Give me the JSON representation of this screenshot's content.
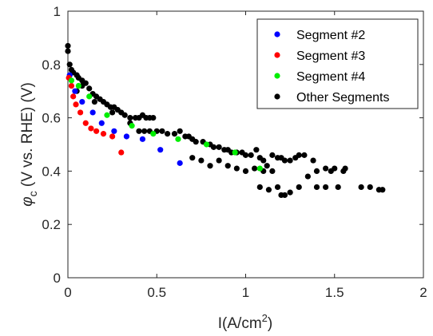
{
  "chart_data": {
    "type": "scatter",
    "xlabel": {
      "base": "I(A/cm",
      "sup": "2",
      "tail": ")"
    },
    "ylabel": {
      "phi": "φ",
      "sub": "c",
      "rest": " (V vs. RHE) (V)"
    },
    "xlim": [
      0,
      2
    ],
    "ylim": [
      0,
      1
    ],
    "xticks": [
      "0",
      "0.5",
      "1",
      "1.5",
      "2"
    ],
    "yticks": [
      "0",
      "0.2",
      "0.4",
      "0.6",
      "0.8",
      "1"
    ],
    "legend_position": "top-right",
    "grid": false,
    "series": [
      {
        "name": "Segment #2",
        "color": "#0000ff",
        "x": [
          0.01,
          0.04,
          0.08,
          0.14,
          0.19,
          0.26,
          0.33,
          0.42,
          0.52,
          0.63
        ],
        "y": [
          0.76,
          0.7,
          0.66,
          0.62,
          0.58,
          0.55,
          0.53,
          0.52,
          0.48,
          0.43
        ]
      },
      {
        "name": "Segment #3",
        "color": "#ff0000",
        "x": [
          0.005,
          0.02,
          0.03,
          0.045,
          0.07,
          0.1,
          0.13,
          0.16,
          0.2,
          0.25,
          0.3
        ],
        "y": [
          0.75,
          0.72,
          0.68,
          0.65,
          0.62,
          0.58,
          0.56,
          0.55,
          0.54,
          0.53,
          0.47
        ]
      },
      {
        "name": "Segment #4",
        "color": "#00ee00",
        "x": [
          0.02,
          0.06,
          0.12,
          0.22,
          0.36,
          0.48,
          0.62,
          0.78,
          0.94,
          1.08
        ],
        "y": [
          0.74,
          0.72,
          0.68,
          0.61,
          0.57,
          0.54,
          0.52,
          0.5,
          0.47,
          0.41
        ]
      },
      {
        "name": "Other Segments",
        "color": "#000000",
        "x": [
          0.0,
          0.0,
          0.01,
          0.02,
          0.03,
          0.05,
          0.06,
          0.08,
          0.1,
          0.12,
          0.14,
          0.16,
          0.18,
          0.2,
          0.22,
          0.24,
          0.26,
          0.28,
          0.3,
          0.32,
          0.35,
          0.38,
          0.4,
          0.42,
          0.44,
          0.46,
          0.48,
          0.4,
          0.43,
          0.46,
          0.5,
          0.53,
          0.56,
          0.6,
          0.63,
          0.66,
          0.68,
          0.7,
          0.72,
          0.76,
          0.8,
          0.82,
          0.85,
          0.88,
          0.9,
          0.92,
          0.95,
          0.98,
          1.0,
          1.03,
          1.06,
          1.08,
          1.1,
          1.12,
          1.15,
          1.18,
          1.2,
          1.22,
          1.25,
          1.28,
          1.3,
          1.33,
          1.35,
          1.38,
          1.4,
          1.45,
          1.48,
          1.5,
          1.55,
          1.56,
          1.65,
          1.7,
          1.75,
          1.77,
          0.9,
          0.95,
          1.0,
          1.05,
          1.1,
          1.15,
          1.2,
          1.25,
          1.3,
          0.85,
          0.8,
          0.75,
          0.7,
          1.18,
          1.22,
          1.4,
          1.45,
          1.52,
          1.08,
          1.13,
          0.15,
          0.25,
          0.35,
          0.05,
          0.08
        ],
        "y": [
          0.87,
          0.85,
          0.8,
          0.78,
          0.77,
          0.76,
          0.75,
          0.74,
          0.73,
          0.71,
          0.69,
          0.68,
          0.67,
          0.66,
          0.65,
          0.64,
          0.64,
          0.63,
          0.62,
          0.61,
          0.6,
          0.6,
          0.6,
          0.61,
          0.6,
          0.6,
          0.6,
          0.55,
          0.55,
          0.55,
          0.55,
          0.55,
          0.54,
          0.54,
          0.55,
          0.53,
          0.53,
          0.52,
          0.51,
          0.51,
          0.5,
          0.49,
          0.49,
          0.48,
          0.48,
          0.47,
          0.47,
          0.47,
          0.46,
          0.46,
          0.48,
          0.45,
          0.44,
          0.42,
          0.46,
          0.45,
          0.45,
          0.44,
          0.44,
          0.45,
          0.46,
          0.46,
          0.38,
          0.44,
          0.4,
          0.41,
          0.4,
          0.41,
          0.4,
          0.41,
          0.34,
          0.34,
          0.33,
          0.33,
          0.42,
          0.41,
          0.4,
          0.41,
          0.4,
          0.4,
          0.31,
          0.32,
          0.34,
          0.44,
          0.42,
          0.44,
          0.45,
          0.34,
          0.31,
          0.34,
          0.34,
          0.34,
          0.34,
          0.33,
          0.66,
          0.62,
          0.58,
          0.7,
          0.72
        ]
      }
    ]
  }
}
